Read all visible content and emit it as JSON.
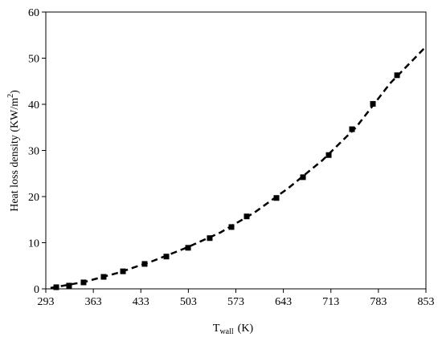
{
  "chart_data": {
    "type": "scatter",
    "x_label": {
      "main": "T",
      "subscript": "wall",
      "suffix": "(K)"
    },
    "y_label": {
      "main": "Heat loss density (KW/m",
      "superscript": "2",
      "suffix": ")"
    },
    "xlim": [
      293,
      853
    ],
    "xticks": [
      293,
      363,
      433,
      503,
      573,
      643,
      713,
      783,
      853
    ],
    "ylim": [
      0,
      60
    ],
    "yticks": [
      0,
      10,
      20,
      30,
      40,
      50,
      60
    ],
    "series": [
      {
        "type": "scatter",
        "color": "#000000",
        "x": [
          308.4,
          327.3,
          348.6,
          378.2,
          406.7,
          438.6,
          470.6,
          502.6,
          534.5,
          566.5,
          589,
          632.8,
          671.9,
          709.8,
          744.1,
          774.9,
          810.5
        ],
        "values": [
          0.35,
          0.7,
          1.4,
          2.6,
          3.8,
          5.4,
          7.0,
          8.9,
          11.0,
          13.4,
          15.7,
          19.7,
          24.2,
          29.0,
          34.6,
          40.1,
          46.3
        ]
      },
      {
        "type": "line",
        "color": "#000000",
        "dashed": true,
        "x": [
          300,
          350,
          400,
          450,
          500,
          550,
          600,
          650,
          700,
          750,
          800,
          853
        ],
        "values": [
          0.2,
          1.5,
          3.5,
          6,
          8.9,
          12.2,
          16.5,
          21.8,
          27.8,
          35,
          44.5,
          52.5
        ]
      }
    ]
  }
}
